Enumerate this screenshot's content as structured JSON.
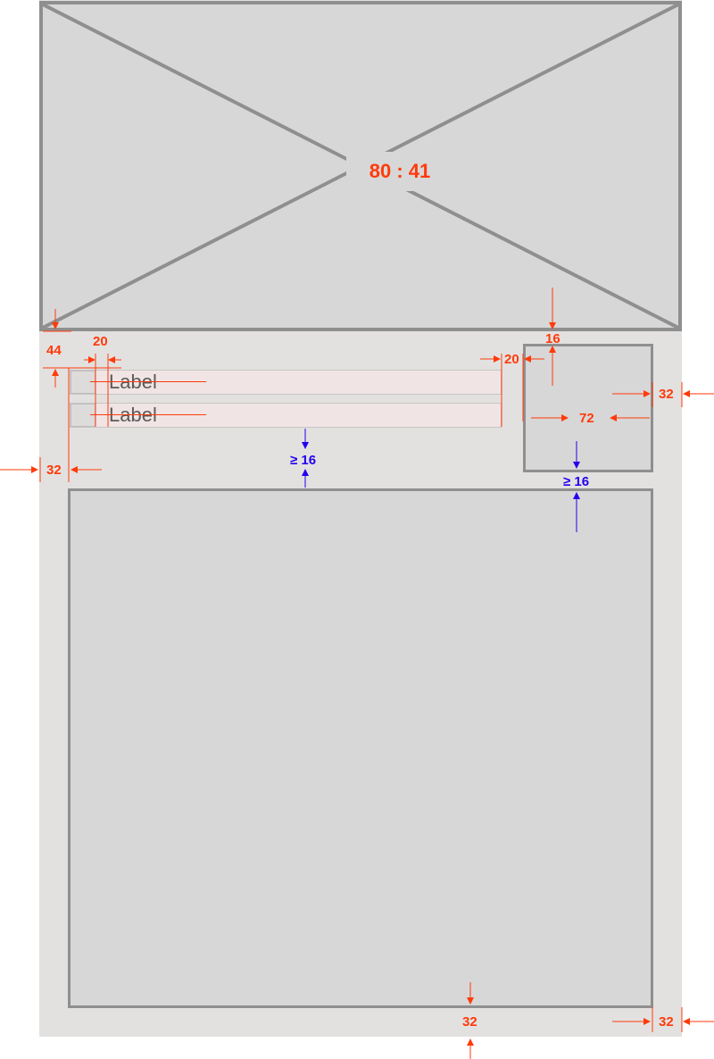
{
  "hero": {
    "ratio": "80 : 41"
  },
  "rows": [
    {
      "label": "Label"
    },
    {
      "label": "Label"
    }
  ],
  "annotations": {
    "top_offset": "44",
    "check_gap": "20",
    "row_end_gap": "20",
    "side_top": "16",
    "side_right": "32",
    "side_width": "72",
    "left_margin": "32",
    "rows_bottom_min": "≥ 16",
    "side_bottom_min": "≥ 16",
    "main_bottom": "32",
    "main_right": "32"
  },
  "colors": {
    "spec_red": "#ff3a0a",
    "spec_blue": "#2200ee",
    "border": "#8f8f8f"
  }
}
